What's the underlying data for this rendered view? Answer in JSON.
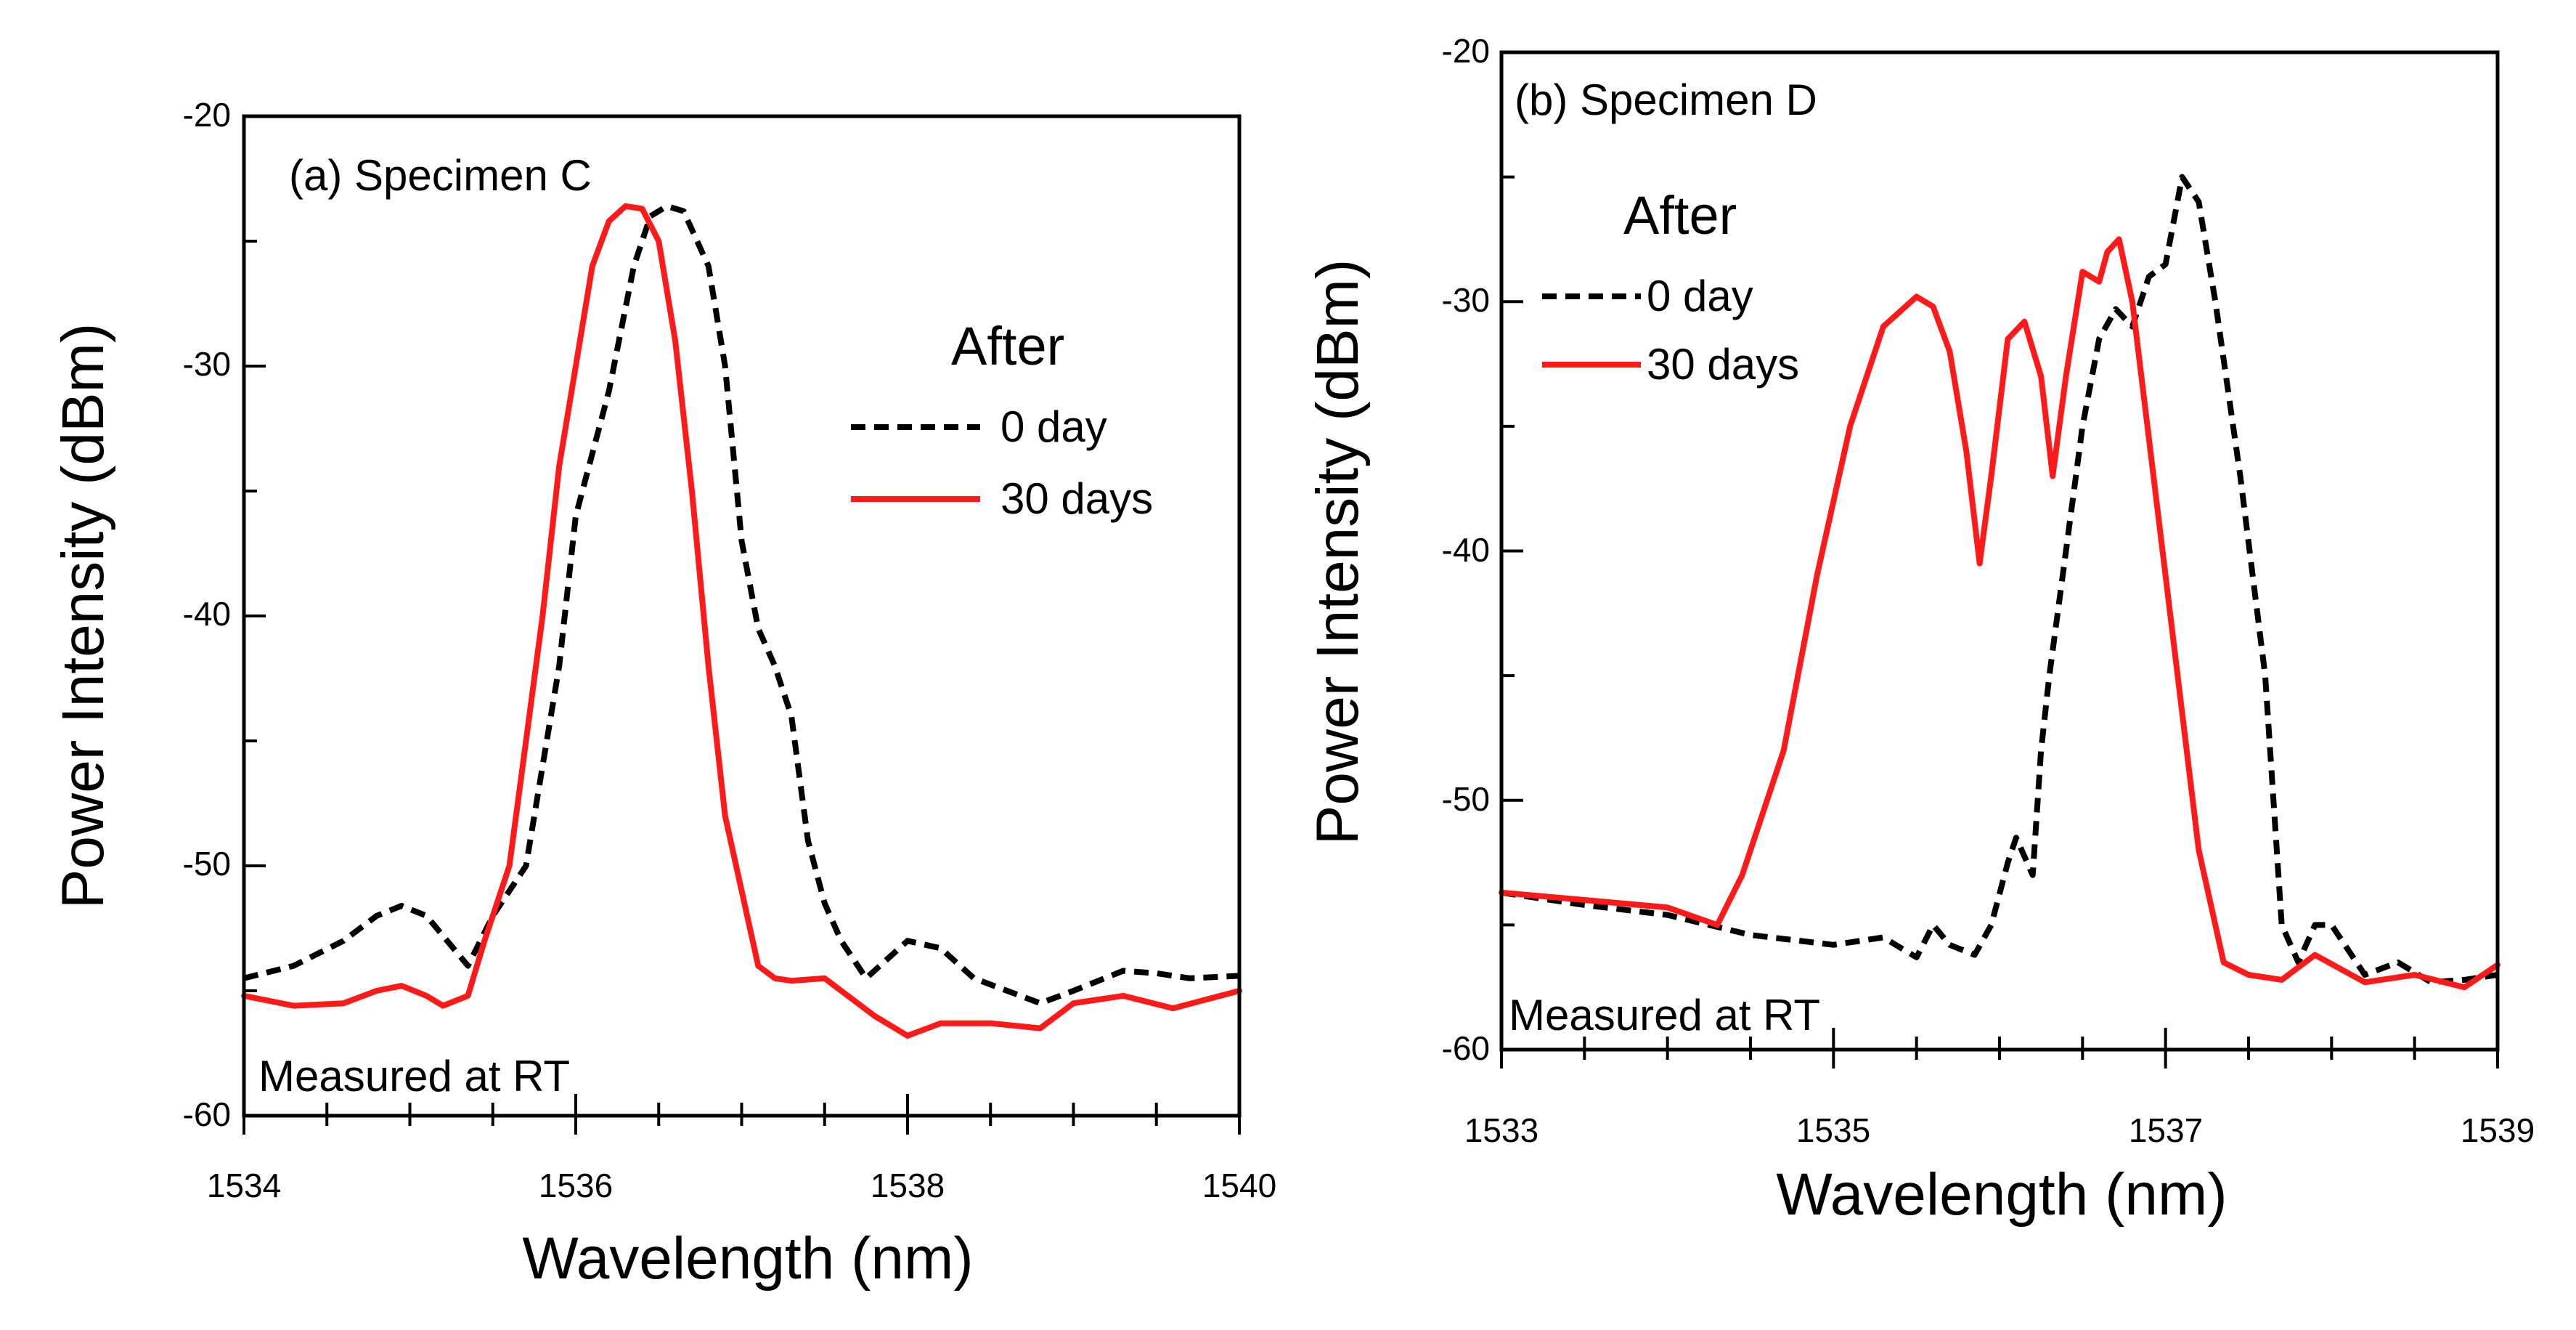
{
  "chart_data": [
    {
      "type": "line",
      "panel_label": "(a) Specimen C",
      "note": "Measured at RT",
      "xlabel": "Wavelength (nm)",
      "ylabel": "Power Intensity (dBm)",
      "xlim": [
        1534,
        1540
      ],
      "ylim": [
        -60,
        -20
      ],
      "xticks": [
        1534,
        1536,
        1538,
        1540
      ],
      "yticks": [
        -60,
        -50,
        -40,
        -30,
        -20
      ],
      "legend_title": "After",
      "series": [
        {
          "name": "0 day",
          "color": "#000000",
          "style": "dashed",
          "x": [
            1534,
            1534.3,
            1534.6,
            1534.8,
            1534.95,
            1535.1,
            1535.2,
            1535.35,
            1535.5,
            1535.7,
            1535.9,
            1536.0,
            1536.2,
            1536.35,
            1536.45,
            1536.55,
            1536.65,
            1536.8,
            1536.9,
            1537.0,
            1537.1,
            1537.2,
            1537.3,
            1537.4,
            1537.5,
            1537.6,
            1537.75,
            1538.0,
            1538.2,
            1538.4,
            1538.6,
            1538.8,
            1539.0,
            1539.3,
            1539.5,
            1539.7,
            1540.0
          ],
          "y": [
            -54.5,
            -54,
            -53,
            -52,
            -51.6,
            -52,
            -52.8,
            -54,
            -52,
            -50,
            -42,
            -36,
            -31,
            -26,
            -24,
            -23.6,
            -23.8,
            -26,
            -30,
            -37,
            -40.5,
            -42,
            -44,
            -49,
            -51.5,
            -53,
            -54.5,
            -53,
            -53.3,
            -54.5,
            -55,
            -55.5,
            -55,
            -54.2,
            -54.3,
            -54.5,
            -54.4
          ]
        },
        {
          "name": "30 days",
          "color": "#ff1a1a",
          "style": "solid",
          "x": [
            1534,
            1534.3,
            1534.6,
            1534.8,
            1534.95,
            1535.1,
            1535.2,
            1535.35,
            1535.45,
            1535.6,
            1535.7,
            1535.8,
            1535.9,
            1536.0,
            1536.1,
            1536.2,
            1536.3,
            1536.4,
            1536.5,
            1536.6,
            1536.7,
            1536.8,
            1536.9,
            1537.0,
            1537.1,
            1537.2,
            1537.3,
            1537.5,
            1537.8,
            1538.0,
            1538.2,
            1538.5,
            1538.8,
            1539.0,
            1539.3,
            1539.6,
            1540.0
          ],
          "y": [
            -55.2,
            -55.6,
            -55.5,
            -55,
            -54.8,
            -55.2,
            -55.6,
            -55.2,
            -53,
            -50,
            -45,
            -40,
            -34,
            -30,
            -26,
            -24.2,
            -23.6,
            -23.7,
            -25,
            -29,
            -35,
            -42,
            -48,
            -51,
            -54,
            -54.5,
            -54.6,
            -54.5,
            -56,
            -56.8,
            -56.3,
            -56.3,
            -56.5,
            -55.5,
            -55.2,
            -55.7,
            -55
          ]
        }
      ]
    },
    {
      "type": "line",
      "panel_label": "(b) Specimen D",
      "note": "Measured at RT",
      "xlabel": "Wavelength (nm)",
      "ylabel": "Power Intensity (dBm)",
      "xlim": [
        1533,
        1539
      ],
      "ylim": [
        -60,
        -20
      ],
      "xticks": [
        1533,
        1535,
        1537,
        1539
      ],
      "yticks": [
        -60,
        -50,
        -40,
        -30,
        -20
      ],
      "legend_title": "After",
      "series": [
        {
          "name": "0 day",
          "color": "#000000",
          "style": "dashed",
          "x": [
            1533,
            1533.5,
            1534,
            1534.5,
            1535,
            1535.3,
            1535.5,
            1535.6,
            1535.7,
            1535.85,
            1535.95,
            1536.05,
            1536.1,
            1536.2,
            1536.25,
            1536.3,
            1536.4,
            1536.5,
            1536.6,
            1536.7,
            1536.8,
            1536.9,
            1537.0,
            1537.1,
            1537.2,
            1537.3,
            1537.45,
            1537.6,
            1537.7,
            1537.8,
            1537.9,
            1538.0,
            1538.2,
            1538.4,
            1538.6,
            1538.8,
            1539.0
          ],
          "y": [
            -53.7,
            -54.2,
            -54.6,
            -55.4,
            -55.8,
            -55.5,
            -56.3,
            -55,
            -55.8,
            -56.2,
            -55,
            -52.5,
            -51.5,
            -53,
            -48,
            -45,
            -40,
            -35,
            -31.5,
            -30.3,
            -31,
            -29,
            -28.5,
            -25,
            -26,
            -30,
            -37,
            -45,
            -55,
            -56.5,
            -55,
            -55,
            -57,
            -56.5,
            -57.3,
            -57.2,
            -57
          ]
        },
        {
          "name": "30 days",
          "color": "#ff1a1a",
          "style": "solid",
          "x": [
            1533,
            1533.5,
            1534,
            1534.3,
            1534.45,
            1534.7,
            1534.9,
            1535.1,
            1535.3,
            1535.5,
            1535.6,
            1535.7,
            1535.8,
            1535.88,
            1535.95,
            1536.05,
            1536.15,
            1536.25,
            1536.32,
            1536.4,
            1536.5,
            1536.6,
            1536.65,
            1536.72,
            1536.8,
            1537.0,
            1537.2,
            1537.35,
            1537.5,
            1537.7,
            1537.9,
            1538.2,
            1538.5,
            1538.8,
            1539.0
          ],
          "y": [
            -53.7,
            -54,
            -54.3,
            -55,
            -53,
            -48,
            -41,
            -35,
            -31,
            -29.8,
            -30.2,
            -32,
            -36,
            -40.5,
            -37,
            -31.5,
            -30.8,
            -33,
            -37,
            -33,
            -28.8,
            -29.2,
            -28,
            -27.5,
            -30,
            -41,
            -52,
            -56.5,
            -57,
            -57.2,
            -56.2,
            -57.3,
            -57,
            -57.5,
            -56.6
          ]
        }
      ]
    }
  ]
}
